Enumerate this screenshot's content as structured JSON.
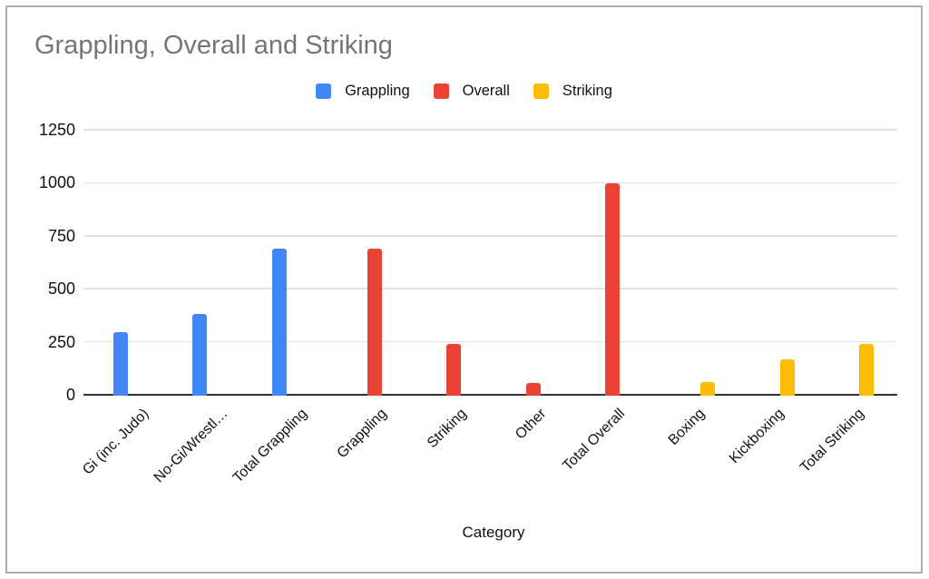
{
  "window": {
    "background": "#ffffff",
    "border_color": "#aeaeae"
  },
  "chart_data": {
    "type": "bar",
    "title": "Grappling, Overall and Striking",
    "xlabel": "Category",
    "ylabel": "",
    "categories": [
      "Gi (inc. Judo)",
      "No-Gi/Wrestl…",
      "Total Grappling",
      "Grappling",
      "Striking",
      "Other",
      "Total Overall",
      "Boxing",
      "Kickboxing",
      "Total Striking"
    ],
    "series": [
      {
        "name": "Grappling",
        "color": "#4285F4",
        "values": [
          300,
          385,
          695,
          null,
          null,
          null,
          null,
          null,
          null,
          null
        ]
      },
      {
        "name": "Overall",
        "color": "#EA4335",
        "values": [
          null,
          null,
          null,
          695,
          245,
          60,
          1000,
          null,
          null,
          null
        ]
      },
      {
        "name": "Striking",
        "color": "#FBBC04",
        "values": [
          null,
          null,
          null,
          null,
          null,
          null,
          null,
          65,
          170,
          245
        ]
      }
    ],
    "y_ticks": [
      0,
      250,
      500,
      750,
      1000,
      1250
    ],
    "ylim": [
      0,
      1250
    ],
    "grid": true,
    "legend_position": "top-center",
    "styles": {
      "title_color": "#757575",
      "axis_line_color": "#333333",
      "gridline_color": "#e2e2e2",
      "text_color": "#111111"
    }
  }
}
